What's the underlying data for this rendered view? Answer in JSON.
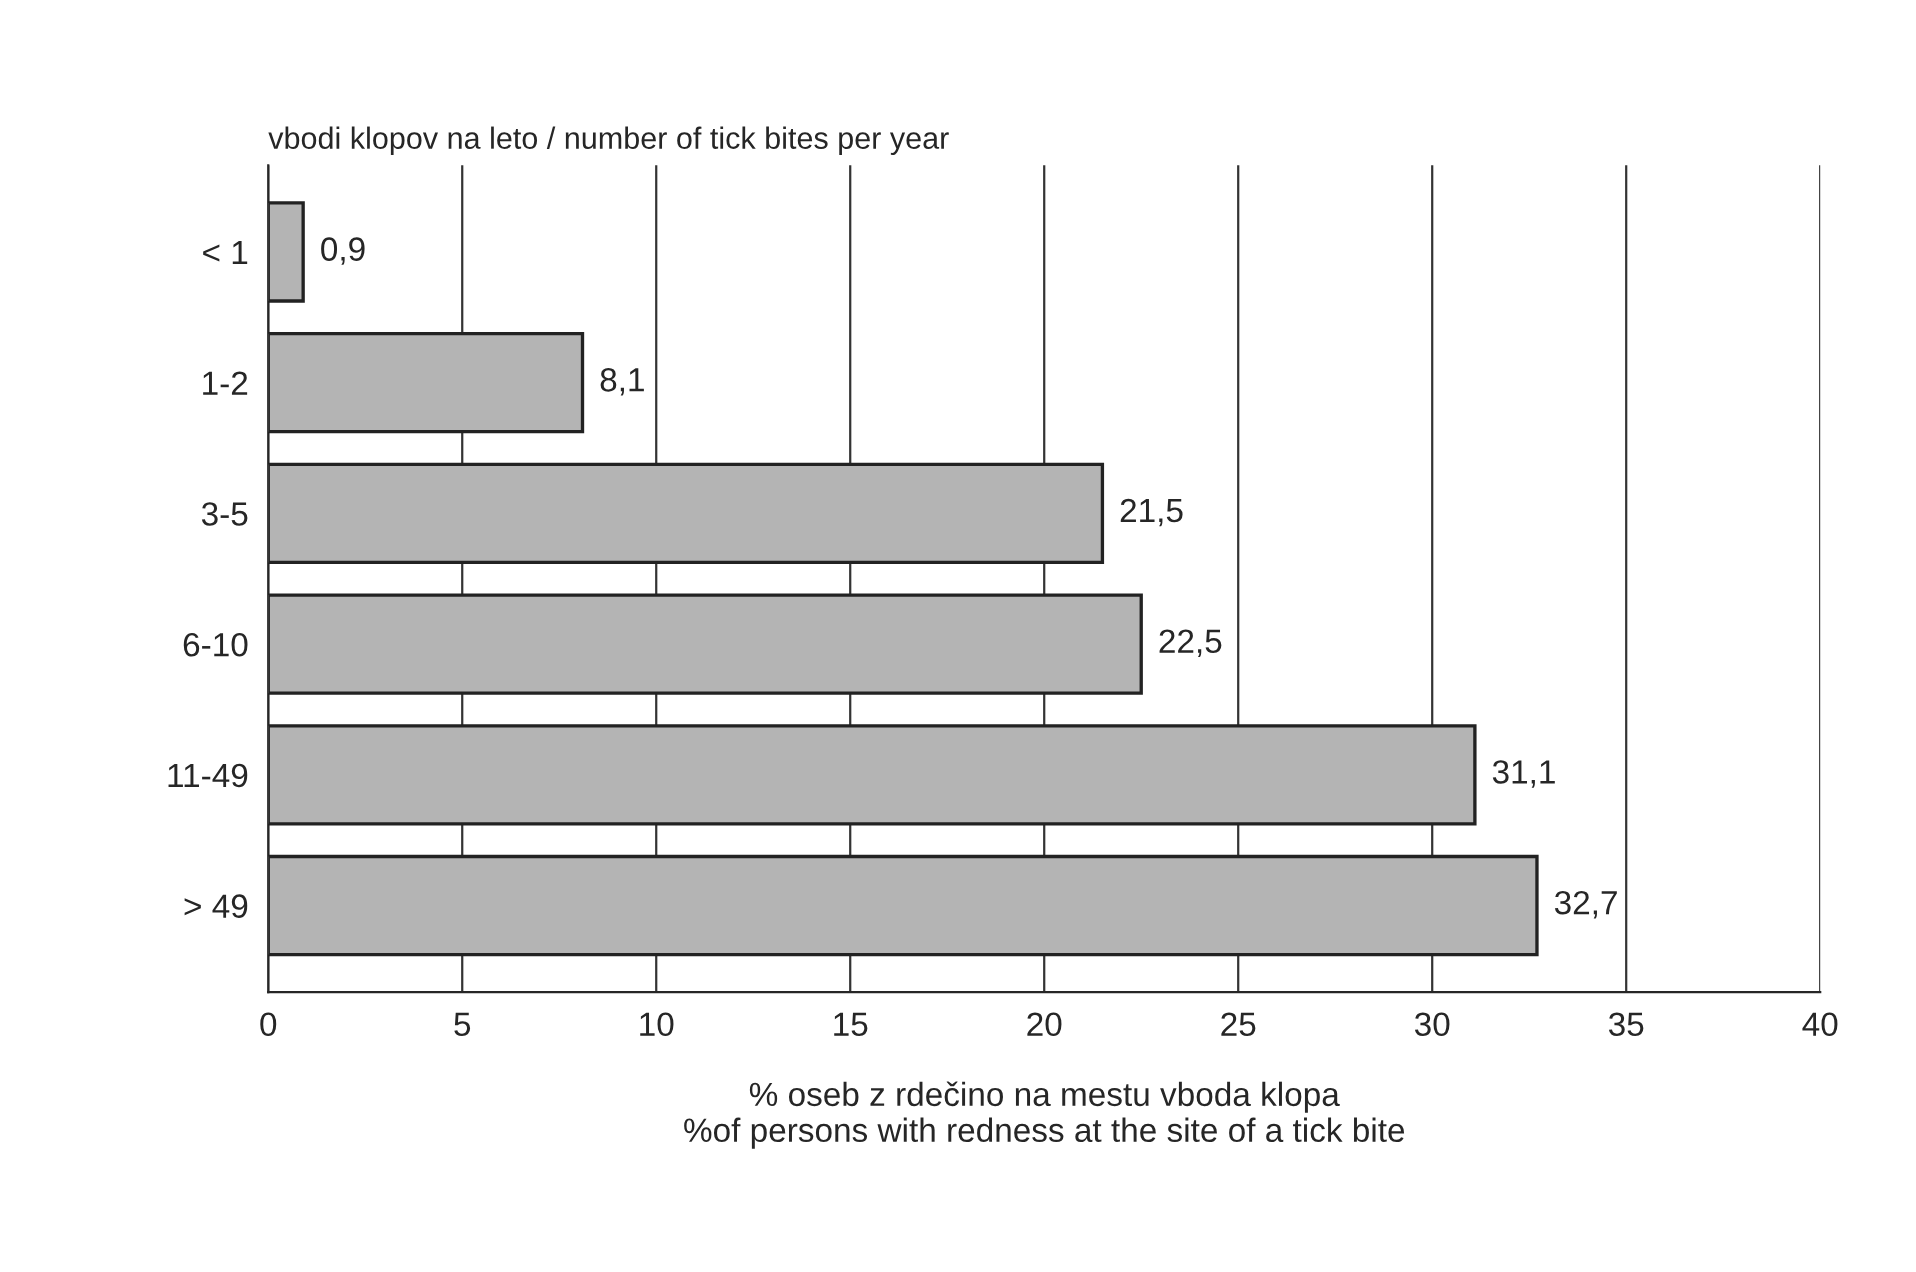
{
  "chart_data": {
    "type": "bar",
    "orientation": "horizontal",
    "title": "vbodi klopov na leto / number of tick bites per year",
    "xlabel": "% oseb z rdečino na mestu vboda klopa\n%of persons with redness at the site of a tick bite",
    "categories": [
      "< 1",
      "1-2",
      "3-5",
      "6-10",
      "11-49",
      "> 49"
    ],
    "values": [
      0.9,
      8.1,
      21.5,
      22.5,
      31.1,
      32.7
    ],
    "value_labels": [
      "0,9",
      "8,1",
      "21,5",
      "22,5",
      "31,1",
      "32,7"
    ],
    "color": "#b4b4b4",
    "xlim": [
      0,
      40
    ],
    "xticks": [
      0,
      5,
      10,
      15,
      20,
      25,
      30,
      35,
      40
    ],
    "grid": "x"
  }
}
